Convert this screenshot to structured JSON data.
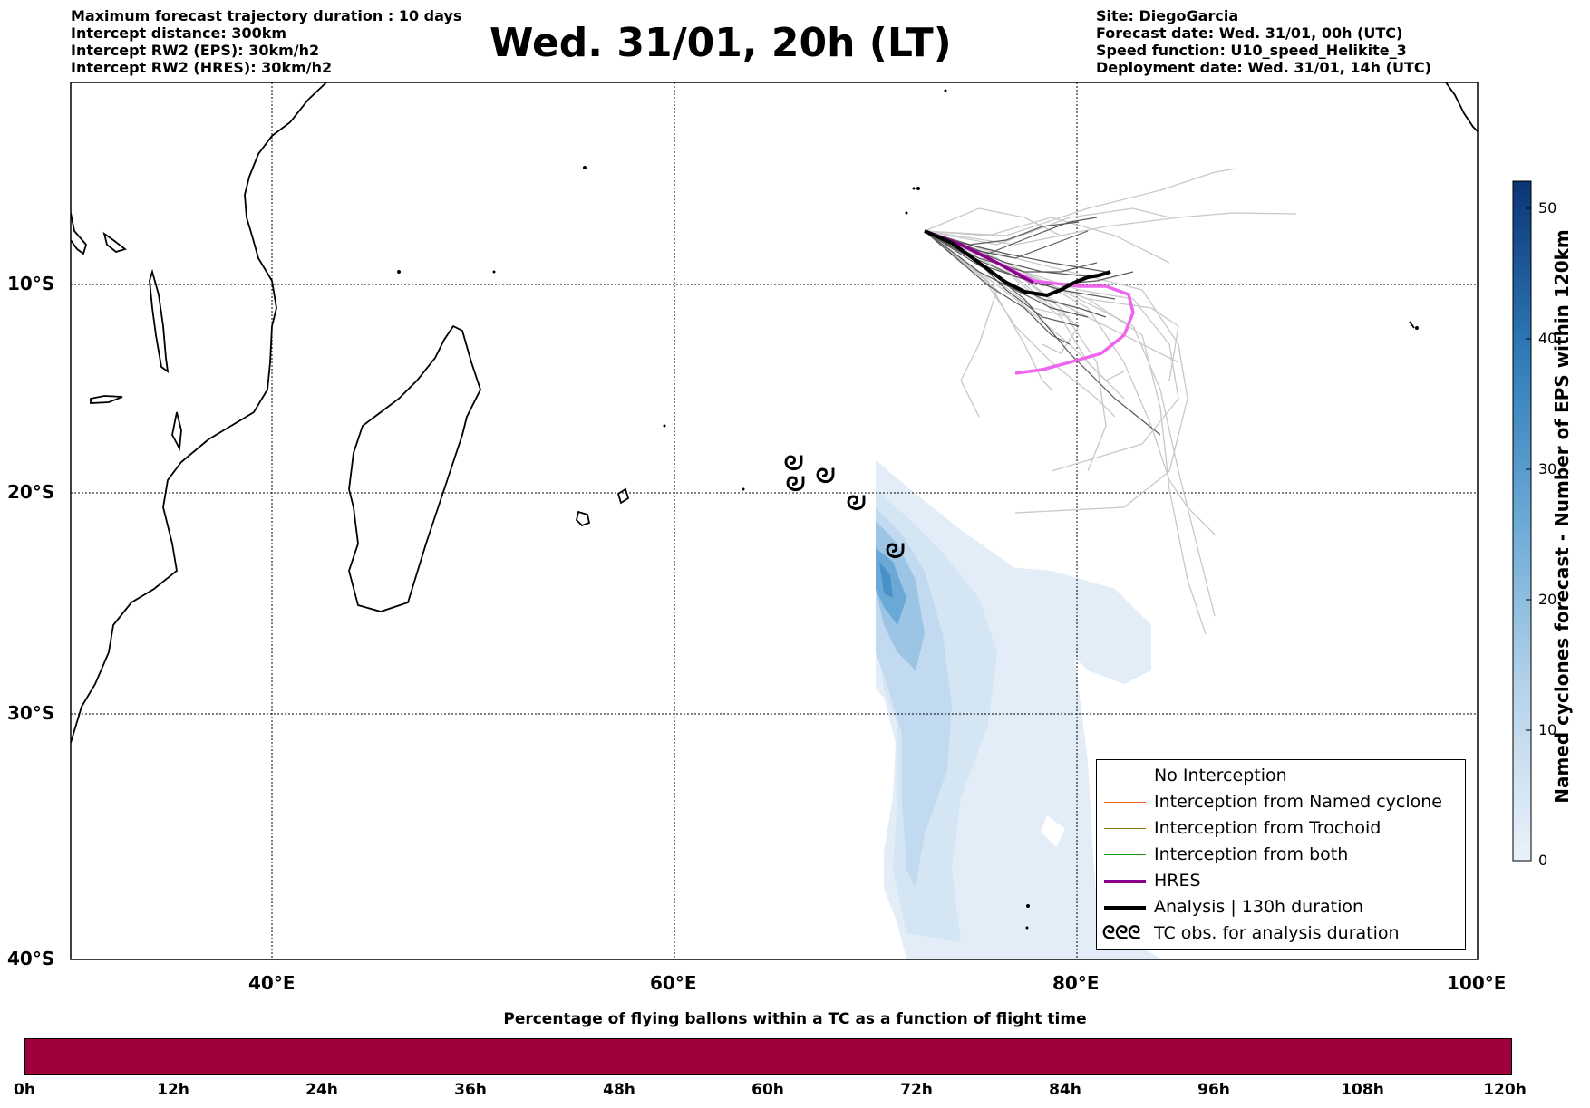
{
  "header": {
    "left": [
      "Maximum forecast trajectory duration : 10 days",
      "Intercept distance: 300km",
      "Intercept RW2 (EPS):  30km/h2",
      "Intercept RW2 (HRES): 30km/h2"
    ],
    "title": "Wed. 31/01, 20h (LT)",
    "right": [
      "Site: DiegoGarcia",
      "Forecast date: Wed. 31/01, 00h (UTC)",
      "Speed function: U10_speed_Helikite_3",
      "Deployment date: Wed. 31/01, 14h (UTC)"
    ]
  },
  "map": {
    "lat_labels": [
      "10°S",
      "20°S",
      "30°S",
      "40°S"
    ],
    "lon_labels": [
      "40°E",
      "60°E",
      "80°E",
      "100°E"
    ],
    "extent": {
      "lon_min": 30,
      "lon_max": 100,
      "lat_min": -40,
      "lat_max": -1
    },
    "grid": true,
    "colors": {
      "no_interception": "#555555",
      "hres": "#8b008b",
      "hres_forecast": "#ee66ee",
      "analysis": "#000000",
      "density": "#4a90c8"
    }
  },
  "colorbar": {
    "title": "Named cyclones forecast - Number of EPS within 120km",
    "ticks": [
      "0",
      "10",
      "20",
      "30",
      "40",
      "50"
    ]
  },
  "legend": {
    "items": [
      {
        "label": "No Interception",
        "color": "#555555",
        "style": "thin"
      },
      {
        "label": "Interception from Named cyclone",
        "color": "#e8601c",
        "style": "thin"
      },
      {
        "label": "Interception from Trochoid",
        "color": "#8a7a00",
        "style": "thin"
      },
      {
        "label": "Interception from both",
        "color": "#1a9a1a",
        "style": "thin"
      },
      {
        "label": "HRES",
        "color": "#8b008b",
        "style": "thick"
      },
      {
        "label": "Analysis | 130h duration",
        "color": "#000000",
        "style": "thick"
      },
      {
        "label": "TC obs. for analysis duration",
        "symbol": "ᘓᘓᘓ"
      }
    ]
  },
  "time_bar": {
    "title": "Percentage of flying ballons within a TC as a function of flight time",
    "color": "#a0003c",
    "ticks": [
      "0h",
      "12h",
      "24h",
      "36h",
      "48h",
      "60h",
      "72h",
      "84h",
      "96h",
      "108h",
      "120h"
    ]
  }
}
